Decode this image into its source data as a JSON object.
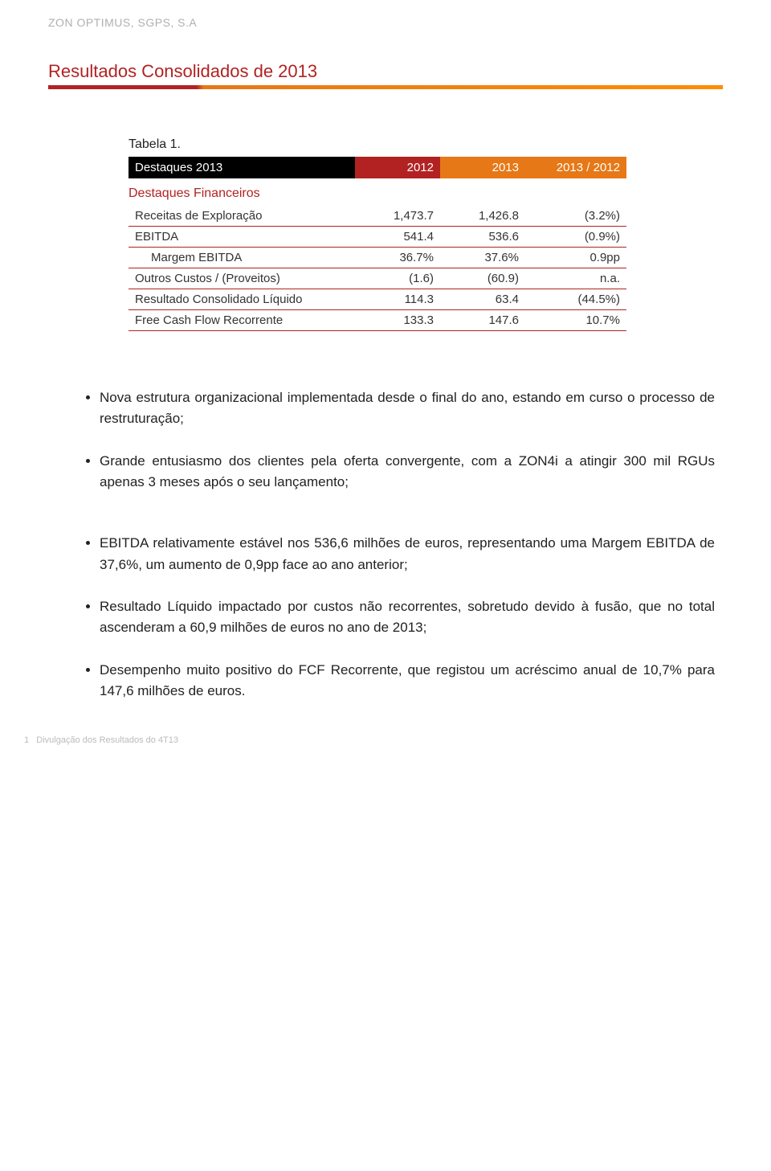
{
  "header": {
    "company": "ZON OPTIMUS, SGPS, S.A",
    "title": "Resultados Consolidados de 2013"
  },
  "table": {
    "caption": "Tabela 1.",
    "head": [
      "Destaques 2013",
      "2012",
      "2013",
      "2013 / 2012"
    ],
    "subhead": "Destaques Financeiros",
    "rows": [
      {
        "label": "Receitas de Exploração",
        "indent": false,
        "c1": "1,473.7",
        "c2": "1,426.8",
        "c3": "(3.2%)"
      },
      {
        "label": "EBITDA",
        "indent": false,
        "c1": "541.4",
        "c2": "536.6",
        "c3": "(0.9%)"
      },
      {
        "label": "Margem EBITDA",
        "indent": true,
        "c1": "36.7%",
        "c2": "37.6%",
        "c3": "0.9pp"
      },
      {
        "label": "Outros Custos / (Proveitos)",
        "indent": false,
        "c1": "(1.6)",
        "c2": "(60.9)",
        "c3": "n.a."
      },
      {
        "label": "Resultado Consolidado Líquido",
        "indent": false,
        "c1": "114.3",
        "c2": "63.4",
        "c3": "(44.5%)"
      },
      {
        "label": "Free Cash Flow Recorrente",
        "indent": false,
        "c1": "133.3",
        "c2": "147.6",
        "c3": "10.7%"
      }
    ]
  },
  "bullets": {
    "group1": [
      "Nova estrutura organizacional implementada desde o final do ano, estando em curso o processo de restruturação;",
      "Grande entusiasmo dos clientes pela oferta convergente, com a ZON4i a atingir 300 mil RGUs apenas 3 meses após o seu lançamento;"
    ],
    "group2": [
      "EBITDA relativamente estável nos 536,6 milhões de euros, representando uma Margem EBITDA de 37,6%, um aumento de 0,9pp face ao ano anterior;",
      "Resultado Líquido impactado por custos não recorrentes, sobretudo devido à fusão, que no total ascenderam a 60,9 milhões de euros no ano de 2013;",
      "Desempenho muito positivo do FCF Recorrente, que registou um acréscimo anual de 10,7% para 147,6 milhões de euros."
    ]
  },
  "footer": {
    "page": "1",
    "text": "Divulgação dos Resultados do 4T13"
  },
  "colors": {
    "red": "#b22222",
    "orange": "#e67817",
    "gray": "#b0b0b0"
  }
}
